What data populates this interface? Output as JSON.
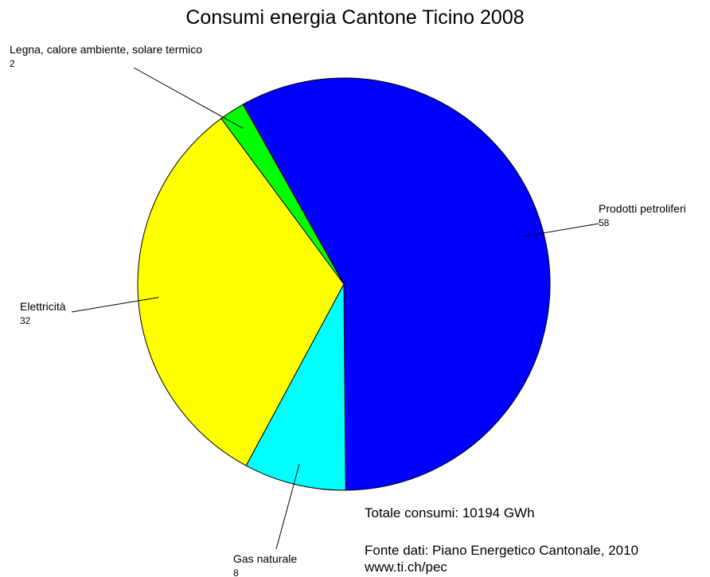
{
  "chart_data": {
    "type": "pie",
    "title": "Consumi energia Cantone Ticino 2008",
    "categories": [
      "Prodotti petroliferi",
      "Gas naturale",
      "Elettricità",
      "Legna, calore ambiente, solare termico"
    ],
    "values": [
      58,
      8,
      32,
      2
    ],
    "colors": [
      "#0000ff",
      "#00ffff",
      "#ffff00",
      "#00ff00"
    ],
    "annotations": [
      "Totale consumi: 10194 GWh",
      "Fonte dati: Piano Energetico Cantonale, 2010",
      "www.ti.ch/pec"
    ]
  }
}
